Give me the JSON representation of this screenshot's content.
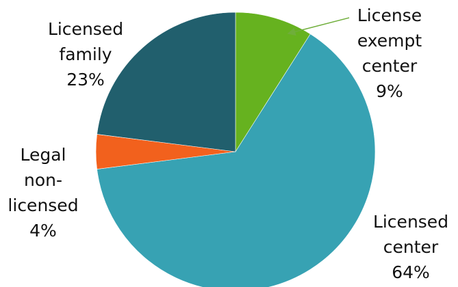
{
  "chart_data": {
    "type": "pie",
    "title": "",
    "start_angle_deg": 0,
    "direction": "clockwise",
    "slices": [
      {
        "key": "license_exempt_center",
        "label_lines": [
          "License",
          "exempt",
          "center"
        ],
        "value_label": "9%",
        "value": 9,
        "color": "#66b21f"
      },
      {
        "key": "licensed_center",
        "label_lines": [
          "Licensed",
          "center"
        ],
        "value_label": "64%",
        "value": 64,
        "color": "#37a2b3"
      },
      {
        "key": "legal_non_licensed",
        "label_lines": [
          "Legal",
          "non-",
          "licensed"
        ],
        "value_label": "4%",
        "value": 4,
        "color": "#f2611d"
      },
      {
        "key": "licensed_family",
        "label_lines": [
          "Licensed",
          "family"
        ],
        "value_label": "23%",
        "value": 23,
        "color": "#215f6d"
      }
    ],
    "callout_color": "#6fae3a"
  }
}
